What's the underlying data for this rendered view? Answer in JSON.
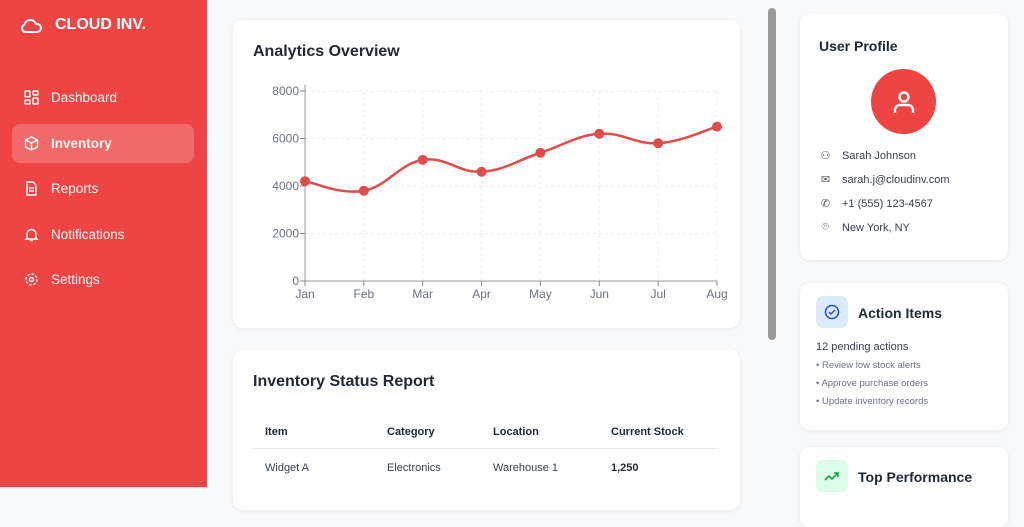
{
  "brand": {
    "name": "CLOUD INV."
  },
  "sidebar": {
    "items": [
      {
        "label": "Dashboard",
        "icon": "grid-icon"
      },
      {
        "label": "Inventory",
        "icon": "box-icon",
        "active": true
      },
      {
        "label": "Reports",
        "icon": "file-icon"
      },
      {
        "label": "Notifications",
        "icon": "bell-icon"
      },
      {
        "label": "Settings",
        "icon": "gear-icon"
      }
    ]
  },
  "analytics": {
    "title": "Analytics Overview"
  },
  "chart_data": {
    "type": "line",
    "categories": [
      "Jan",
      "Feb",
      "Mar",
      "Apr",
      "May",
      "Jun",
      "Jul",
      "Aug"
    ],
    "values": [
      4200,
      3800,
      5100,
      4600,
      5400,
      6200,
      5800,
      6500
    ],
    "yticks": [
      0,
      2000,
      4000,
      6000,
      8000
    ],
    "ylim": [
      0,
      8000
    ],
    "grid": true,
    "color": "#e14b4b"
  },
  "inventory": {
    "title": "Inventory Status Report",
    "columns": [
      "Item",
      "Category",
      "Location",
      "Current Stock"
    ],
    "rows": [
      [
        "Widget A",
        "Electronics",
        "Warehouse 1",
        "1,250"
      ]
    ]
  },
  "profile": {
    "title": "User Profile",
    "name": "Sarah Johnson",
    "email": "sarah.j@cloudinv.com",
    "phone": "+1 (555) 123-4567",
    "location": "New York, NY",
    "accent": "#ef4444"
  },
  "actions": {
    "title": "Action Items",
    "summary": "12 pending actions",
    "items": [
      "• Review low stock alerts",
      "• Approve purchase orders",
      "• Update inventory records"
    ]
  },
  "top": {
    "title": "Top Performance"
  }
}
